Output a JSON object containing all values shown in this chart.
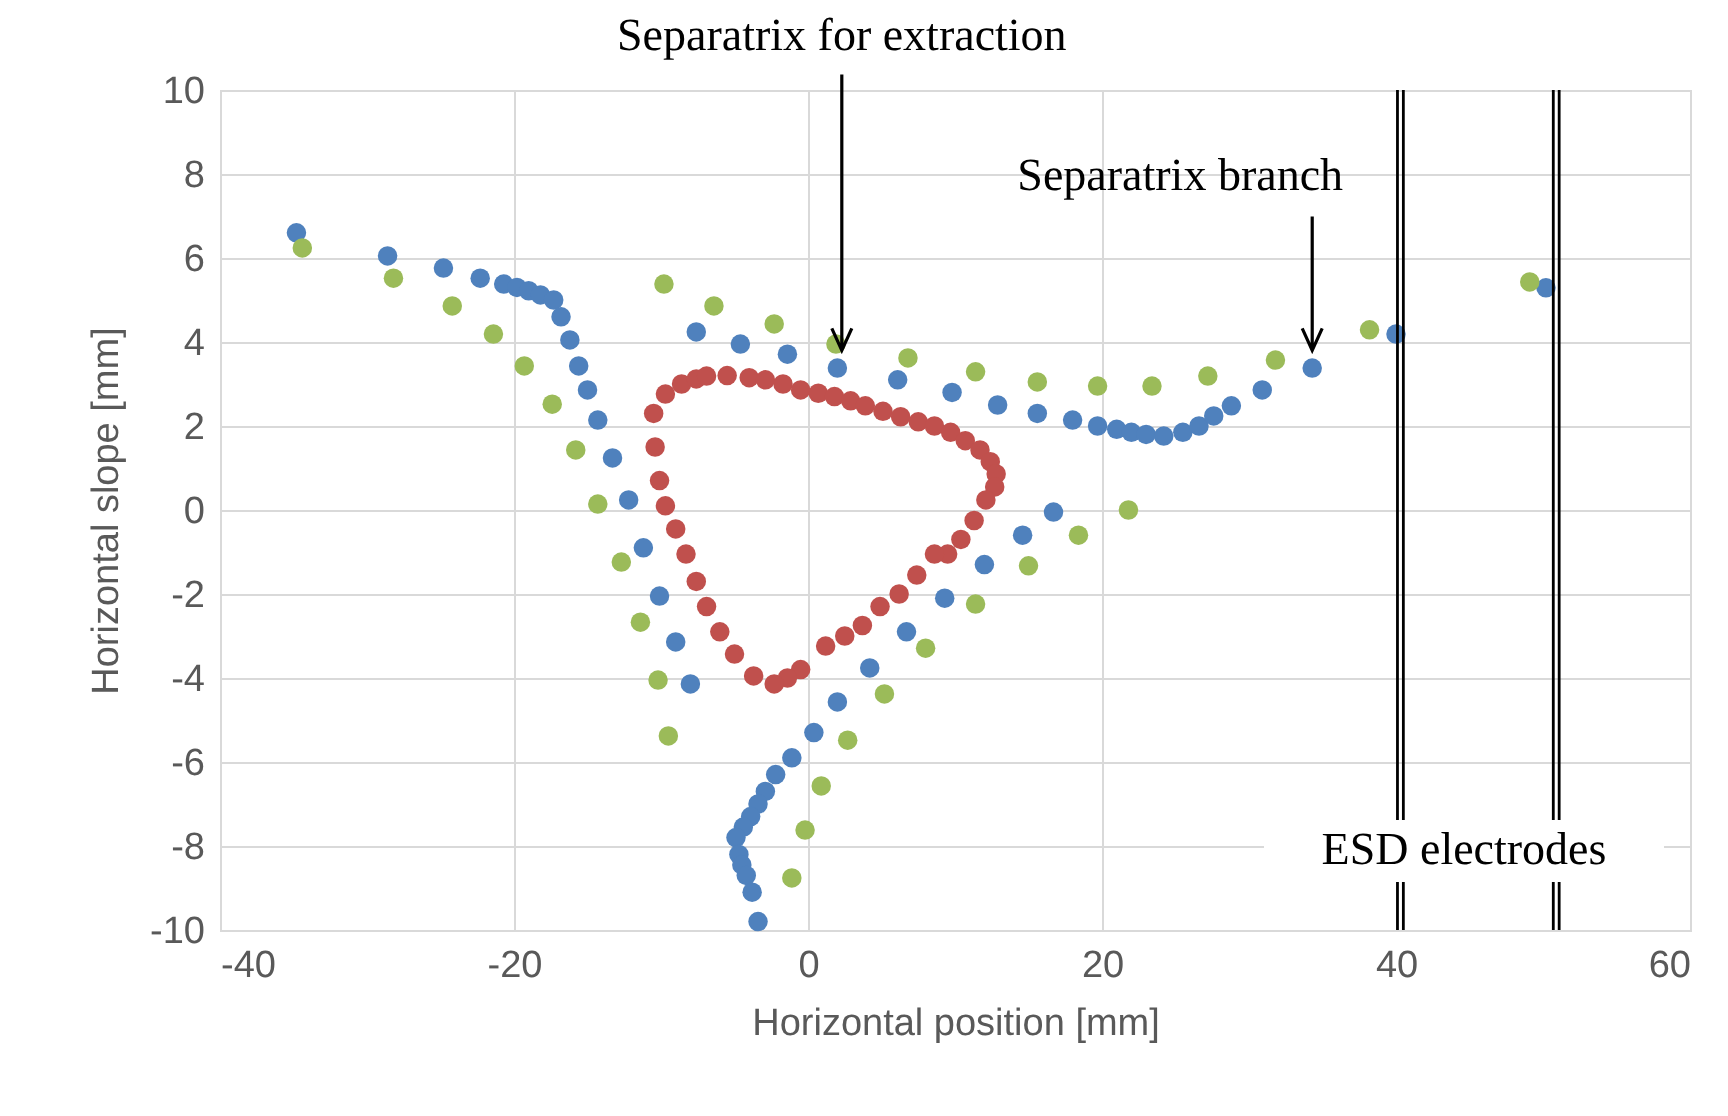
{
  "chart_data": {
    "type": "scatter",
    "xlabel": "Horizontal position [mm]",
    "ylabel": "Horizontal slope [mm]",
    "xlim": [
      -40,
      60
    ],
    "xticks": [
      -40,
      -20,
      0,
      20,
      40,
      60
    ],
    "ylim": [
      -10,
      10
    ],
    "yticks": [
      -10,
      -8,
      -6,
      -4,
      -2,
      0,
      2,
      4,
      6,
      8,
      10
    ],
    "grid": true,
    "marker": "circle",
    "series": [
      {
        "color": "#4f81bd",
        "x": [
          -34.8,
          -28.6,
          -24.8,
          -22.3,
          -20.7,
          -19.8,
          -19.0,
          -18.2,
          -17.3,
          -16.8,
          -16.2,
          -15.6,
          -15.0,
          -14.3,
          -13.3,
          -12.2,
          -11.2,
          -10.1,
          -9.0,
          -8.0,
          -7.6,
          -4.6,
          -1.4,
          2.0,
          6.1,
          9.8,
          12.9,
          15.6,
          18.0,
          19.7,
          21.0,
          22.0,
          23.0,
          24.2,
          25.5,
          26.6,
          27.6,
          28.8,
          30.9,
          34.3,
          40.0,
          50.2,
          16.7,
          14.6,
          12.0,
          9.3,
          6.7,
          4.2,
          2.0,
          0.4,
          -1.1,
          -2.2,
          -2.9,
          -3.4,
          -3.9,
          -4.4,
          -4.9,
          -4.7,
          -4.5,
          -4.2,
          -3.8,
          -3.4
        ],
        "values": [
          6.6,
          6.05,
          5.76,
          5.52,
          5.38,
          5.3,
          5.22,
          5.12,
          5.0,
          4.6,
          4.05,
          3.43,
          2.86,
          2.14,
          1.24,
          0.24,
          -0.9,
          -2.05,
          -3.14,
          -4.14,
          4.24,
          3.95,
          3.71,
          3.38,
          3.1,
          2.8,
          2.5,
          2.3,
          2.14,
          2.0,
          1.92,
          1.85,
          1.8,
          1.76,
          1.85,
          2.0,
          2.24,
          2.48,
          2.86,
          3.38,
          4.19,
          5.29,
          -0.05,
          -0.6,
          -1.3,
          -2.1,
          -2.9,
          -3.76,
          -4.57,
          -5.3,
          -5.9,
          -6.3,
          -6.7,
          -7.0,
          -7.3,
          -7.55,
          -7.8,
          -8.2,
          -8.45,
          -8.7,
          -9.1,
          -9.8
        ]
      },
      {
        "color": "#9bbb59",
        "x": [
          -34.4,
          -28.2,
          -24.2,
          -21.4,
          -19.3,
          -17.4,
          -15.8,
          -14.3,
          -12.7,
          -11.4,
          -10.2,
          -9.5,
          -9.8,
          -6.4,
          -2.3,
          1.9,
          6.8,
          11.4,
          15.6,
          19.7,
          23.4,
          27.2,
          31.8,
          38.2,
          49.1,
          21.8,
          18.4,
          15.0,
          11.4,
          8.0,
          5.2,
          2.7,
          0.9,
          -0.2,
          -1.1
        ],
        "values": [
          6.24,
          5.52,
          4.86,
          4.19,
          3.43,
          2.52,
          1.43,
          0.14,
          -1.24,
          -2.67,
          -4.05,
          -5.38,
          5.38,
          4.86,
          4.43,
          3.95,
          3.62,
          3.29,
          3.05,
          2.95,
          2.95,
          3.19,
          3.57,
          4.29,
          5.43,
          0.0,
          -0.6,
          -1.33,
          -2.24,
          -3.29,
          -4.38,
          -5.48,
          -6.57,
          -7.62,
          -8.76
        ]
      },
      {
        "color": "#c0504d",
        "x": [
          -9.7,
          -8.6,
          -7.6,
          -6.9,
          -5.5,
          -4.0,
          -2.9,
          -1.7,
          -0.5,
          0.7,
          1.8,
          2.9,
          3.9,
          5.1,
          6.3,
          7.5,
          8.6,
          9.7,
          10.7,
          11.7,
          12.4,
          12.8,
          12.7,
          12.1,
          11.3,
          10.4,
          9.5,
          8.6,
          7.4,
          6.2,
          4.9,
          3.7,
          2.5,
          1.2,
          -0.5,
          -1.4,
          -2.3,
          -3.7,
          -5.0,
          -6.0,
          -6.9,
          -7.6,
          -8.3,
          -9.0,
          -9.7,
          -10.1,
          -10.4,
          -10.5
        ],
        "values": [
          2.76,
          3.0,
          3.12,
          3.19,
          3.2,
          3.15,
          3.1,
          3.0,
          2.86,
          2.78,
          2.7,
          2.6,
          2.48,
          2.35,
          2.22,
          2.1,
          2.0,
          1.85,
          1.65,
          1.43,
          1.15,
          0.86,
          0.55,
          0.24,
          -0.25,
          -0.7,
          -1.05,
          -1.05,
          -1.55,
          -2.0,
          -2.3,
          -2.75,
          -3.0,
          -3.24,
          -3.8,
          -4.0,
          -4.14,
          -3.95,
          -3.43,
          -2.9,
          -2.3,
          -1.7,
          -1.05,
          -0.45,
          0.1,
          0.7,
          1.5,
          2.3
        ]
      }
    ],
    "ref_lines": [
      {
        "axis": "x",
        "value": 40.1,
        "color": "#000000"
      },
      {
        "axis": "x",
        "value": 40.5,
        "color": "#000000"
      },
      {
        "axis": "x",
        "value": 50.7,
        "color": "#000000"
      },
      {
        "axis": "x",
        "value": 51.1,
        "color": "#000000"
      }
    ],
    "annotations": [
      {
        "text": "Separatrix for extraction",
        "x": 2.3,
        "y": 3.8
      },
      {
        "text": "Separatrix branch",
        "x": 34.3,
        "y": 3.8
      },
      "ESD electrodes"
    ]
  }
}
